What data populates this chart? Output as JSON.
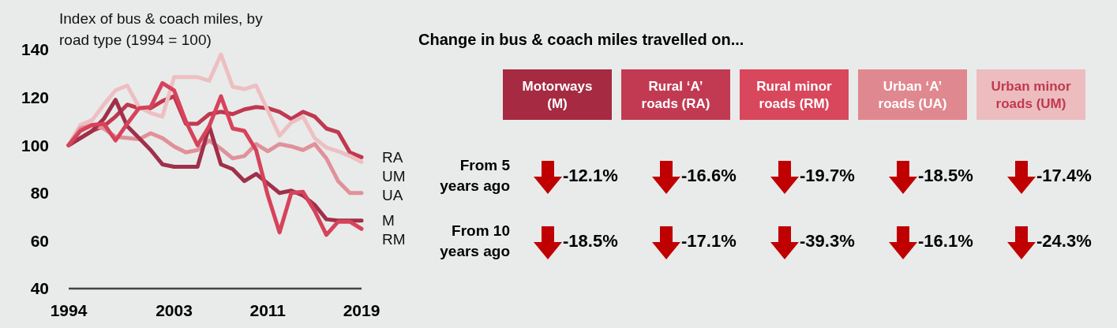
{
  "chart_data": [
    {
      "type": "line",
      "ylabel": "Index of bus & coach miles, by road type (1994 = 100)",
      "x": [
        1994,
        1995,
        1996,
        1997,
        1998,
        1999,
        2000,
        2001,
        2002,
        2003,
        2004,
        2005,
        2006,
        2007,
        2008,
        2009,
        2010,
        2011,
        2012,
        2013,
        2014,
        2015,
        2016,
        2017,
        2018,
        2019
      ],
      "xlim": [
        1994,
        2019
      ],
      "xticks": [
        1994,
        2003,
        2011,
        2019
      ],
      "ylim": [
        40,
        140
      ],
      "yticks": [
        40,
        60,
        80,
        100,
        120,
        140
      ],
      "grid": false,
      "series": [
        {
          "name": "RA",
          "color": "#c0394f",
          "values": [
            100,
            103,
            106,
            108,
            112,
            117,
            115.5,
            115.5,
            118.5,
            120.5,
            109,
            109,
            113,
            114,
            113,
            115,
            116,
            115.5,
            114,
            111,
            114,
            112,
            107,
            105.5,
            97,
            95
          ]
        },
        {
          "name": "UM",
          "color": "#eebfc2",
          "values": [
            100,
            108.5,
            110.5,
            117,
            123,
            125,
            116,
            113.5,
            112,
            128.5,
            128.5,
            128.5,
            127,
            138,
            124.5,
            123.5,
            125,
            114.5,
            104,
            109.5,
            112,
            103,
            99,
            97.5,
            95.5,
            93
          ]
        },
        {
          "name": "UA",
          "color": "#e0919a",
          "values": [
            100,
            107,
            108.5,
            107,
            103.5,
            103,
            102.5,
            105,
            103,
            99.5,
            97,
            98,
            102,
            98.5,
            94.5,
            95.5,
            100.5,
            97.5,
            100.5,
            99.5,
            98,
            100.5,
            94.5,
            85,
            80,
            80
          ]
        },
        {
          "name": "M",
          "color": "#a0304a",
          "values": [
            100,
            103,
            106,
            111,
            119,
            108,
            103,
            98,
            92,
            91,
            91,
            91,
            108,
            92,
            90,
            85,
            88,
            84,
            80,
            81,
            79,
            75,
            69,
            68.5,
            68.5,
            68.5
          ]
        },
        {
          "name": "RM",
          "color": "#d6435a",
          "values": [
            100,
            106,
            108.5,
            109,
            102,
            109,
            115.5,
            116,
            126,
            123,
            110,
            100,
            108,
            120.5,
            107,
            106,
            98,
            79,
            63.5,
            80,
            80.5,
            72.5,
            62.5,
            68,
            68,
            65
          ]
        }
      ]
    },
    {
      "type": "other",
      "title": "Change in bus & coach miles travelled on...",
      "categories": [
        "Motorways (M)",
        "Rural ‘A’ roads (RA)",
        "Rural minor roads (RM)",
        "Urban ‘A’ roads (UA)",
        "Urban minor roads (UM)"
      ],
      "colors": [
        "#a52a42",
        "#c23a52",
        "#d9475c",
        "#e0888f",
        "#ecbcbf"
      ],
      "y_categories": [
        "From 5 years ago",
        "From 10 years ago"
      ],
      "cell_labels": [
        [
          "-12.1%",
          "-16.6%",
          "-19.7%",
          "-18.5%",
          "-17.4%"
        ],
        [
          "-18.5%",
          "-17.1%",
          "-39.3%",
          "-16.1%",
          "-24.3%"
        ]
      ]
    }
  ]
}
